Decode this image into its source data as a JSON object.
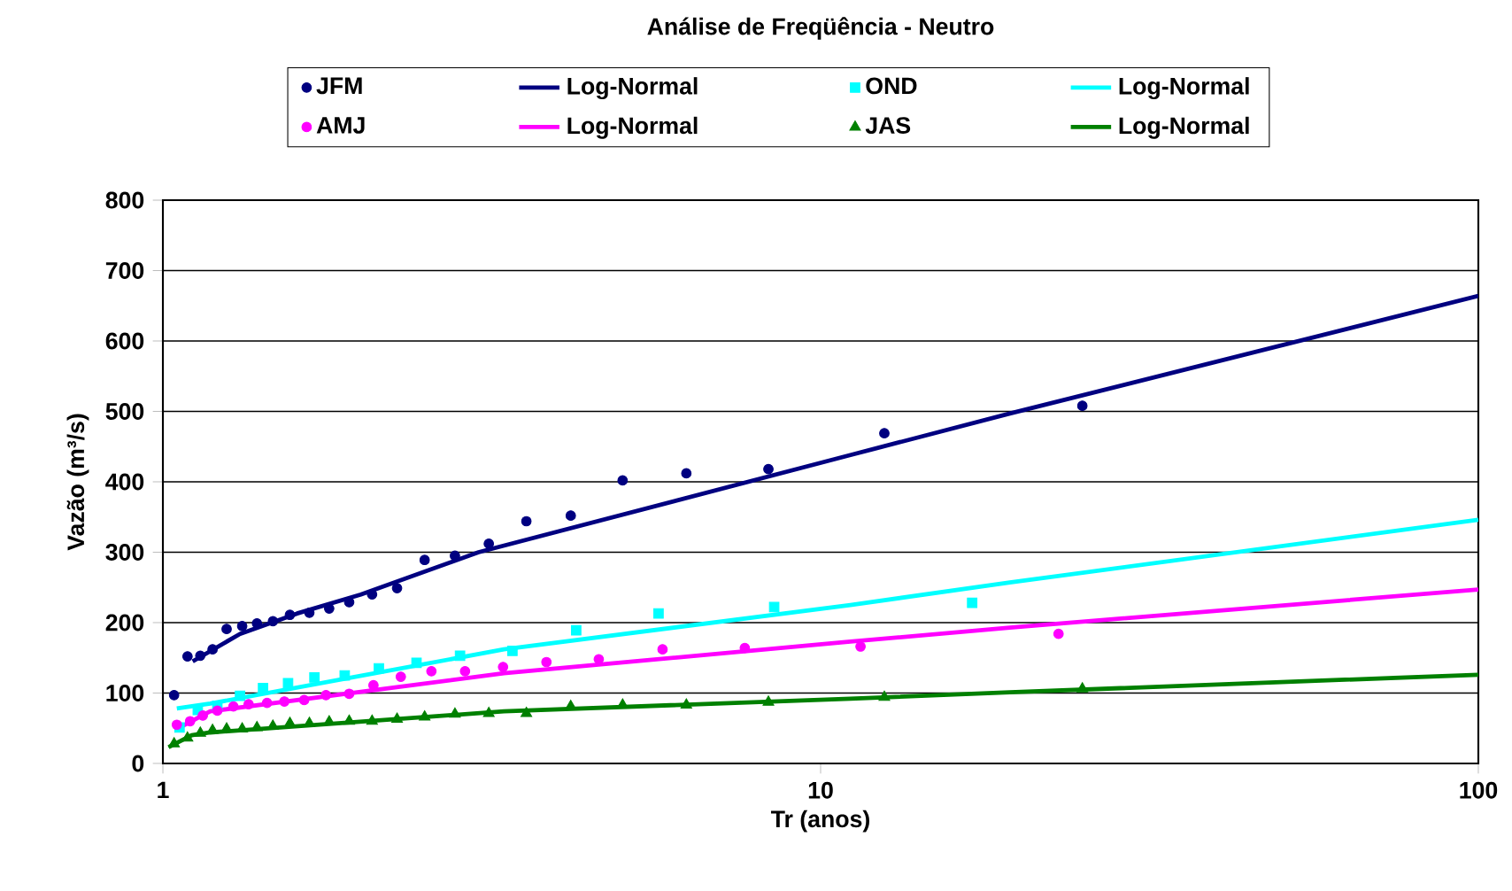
{
  "chart_data": {
    "type": "scatter",
    "title": "Análise de Freqüência - Neutro",
    "xlabel": "Tr (anos)",
    "ylabel": "Vazão (m³/s)",
    "log": "x",
    "xlim": [
      1,
      100
    ],
    "ylim": [
      0,
      800
    ],
    "xticks": [
      1,
      10,
      100
    ],
    "yticks": [
      0,
      100,
      200,
      300,
      400,
      500,
      600,
      700,
      800
    ],
    "grid": "y",
    "legend": "top",
    "series": [
      {
        "name": "JFM",
        "marker": "circle",
        "color": "#000080",
        "x": [
          1.04,
          1.09,
          1.14,
          1.19,
          1.25,
          1.32,
          1.39,
          1.47,
          1.56,
          1.67,
          1.79,
          1.92,
          2.08,
          2.27,
          2.5,
          2.78,
          3.13,
          3.57,
          4.17,
          5,
          6.25,
          8.33,
          12.5,
          25
        ],
        "values": [
          97,
          152,
          153,
          162,
          191,
          195,
          199,
          202,
          211,
          214,
          220,
          229,
          240,
          249,
          289,
          295,
          312,
          344,
          352,
          402,
          412,
          418,
          469,
          508
        ]
      },
      {
        "name": "Log-Normal",
        "type": "line",
        "marker": "none",
        "color": "#000080",
        "x": [
          1.11,
          1.31,
          1.6,
          2,
          3.02,
          11.1,
          19.4,
          100
        ],
        "values": [
          145,
          184,
          213,
          240,
          300,
          438,
          497,
          664
        ]
      },
      {
        "name": "OND",
        "marker": "square",
        "color": "#00ffff",
        "x": [
          1.06,
          1.13,
          1.21,
          1.31,
          1.42,
          1.55,
          1.7,
          1.89,
          2.13,
          2.43,
          2.83,
          3.4,
          4.25,
          5.67,
          8.5,
          17
        ],
        "values": [
          51,
          76,
          82,
          96,
          107,
          114,
          122,
          125,
          135,
          143,
          153,
          160,
          189,
          213,
          222,
          228
        ]
      },
      {
        "name": "Log-Normal",
        "type": "line",
        "marker": "none",
        "color": "#00ffff",
        "x": [
          1.05,
          1.18,
          3.3,
          11.1,
          19.4,
          100
        ],
        "values": [
          78,
          85,
          162,
          225,
          257,
          346
        ]
      },
      {
        "name": "AMJ",
        "marker": "circle",
        "color": "#ff00ff",
        "x": [
          1.05,
          1.1,
          1.15,
          1.21,
          1.28,
          1.35,
          1.44,
          1.53,
          1.64,
          1.77,
          1.92,
          2.09,
          2.3,
          2.56,
          2.88,
          3.29,
          3.83,
          4.6,
          5.75,
          7.67,
          11.5,
          23
        ],
        "values": [
          55,
          60,
          68,
          75,
          81,
          84,
          86,
          88,
          90,
          97,
          99,
          111,
          123,
          131,
          131,
          137,
          144,
          148,
          162,
          164,
          166,
          184
        ]
      },
      {
        "name": "Log-Normal",
        "type": "line",
        "marker": "none",
        "color": "#ff00ff",
        "x": [
          1.05,
          1.18,
          3.3,
          11.1,
          19.4,
          100
        ],
        "values": [
          49,
          74,
          128,
          173,
          193,
          247
        ]
      },
      {
        "name": "JAS",
        "marker": "triangle",
        "color": "#008000",
        "x": [
          1.04,
          1.09,
          1.14,
          1.19,
          1.25,
          1.32,
          1.39,
          1.47,
          1.56,
          1.67,
          1.79,
          1.92,
          2.08,
          2.27,
          2.5,
          2.78,
          3.13,
          3.57,
          4.17,
          5,
          6.25,
          8.33,
          12.5,
          25
        ],
        "values": [
          28,
          36,
          43,
          47,
          49,
          49,
          51,
          53,
          57,
          57,
          59,
          60,
          60,
          63,
          66,
          70,
          71,
          71,
          81,
          83,
          83,
          87,
          94,
          106
        ]
      },
      {
        "name": "Log-Normal",
        "type": "line",
        "marker": "none",
        "color": "#008000",
        "x": [
          1.02,
          1.106,
          1.18,
          3.3,
          11.1,
          19.4,
          100
        ],
        "values": [
          23,
          40,
          44,
          74,
          92,
          101,
          126
        ]
      }
    ]
  }
}
